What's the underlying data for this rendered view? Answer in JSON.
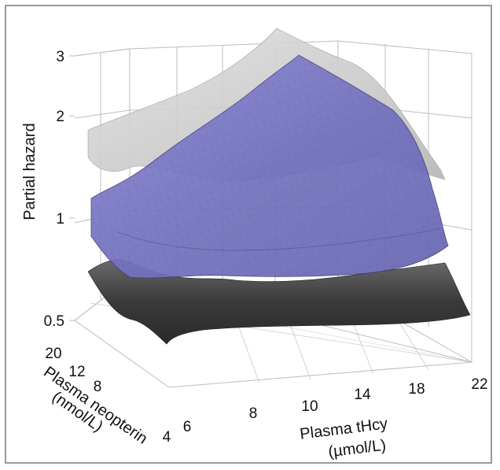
{
  "chart_data": {
    "type": "surface3d",
    "title": "",
    "ylabel": "Partial hazard",
    "x_axis": {
      "label_line1": "Plasma tHcy",
      "label_line2": "(µmol/L)",
      "ticks": [
        "6",
        "8",
        "10",
        "14",
        "18",
        "22"
      ]
    },
    "depth_axis": {
      "label_line1": "Plasma neopterin",
      "label_line2": "(nmol/L)",
      "ticks": [
        "4",
        "8",
        "12",
        "20"
      ]
    },
    "z_axis": {
      "scale": "log",
      "ticks": [
        "0.5",
        "1",
        "2",
        "3"
      ],
      "zlim": [
        0.5,
        3
      ]
    },
    "surfaces": [
      {
        "name": "upper confidence surface",
        "color": "#c8c8c8"
      },
      {
        "name": "estimate surface",
        "color": "#7b78c4"
      },
      {
        "name": "lower confidence surface",
        "color": "#4a4a4a"
      }
    ],
    "grid": true
  }
}
